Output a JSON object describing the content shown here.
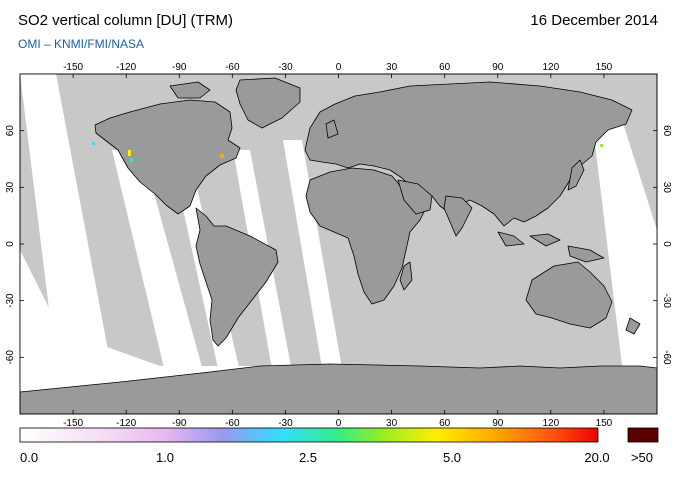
{
  "header": {
    "title": "SO2 vertical column [DU] (TRM)",
    "date": "16 December 2014",
    "credit": "OMI  –  KNMI/FMI/NASA"
  },
  "map": {
    "lon_ticks": [
      "-150",
      "-120",
      "-90",
      "-60",
      "-30",
      "0",
      "30",
      "60",
      "90",
      "120",
      "150"
    ],
    "lat_ticks": [
      "60",
      "30",
      "0",
      "-30",
      "-60"
    ],
    "colors": {
      "ocean": "#c8c8c8",
      "land": "#9a9a9a",
      "swath": "#ffffff",
      "coast": "#000000"
    }
  },
  "colorbar": {
    "labels": [
      "0.0",
      "1.0",
      "2.5",
      "5.0",
      "20.0",
      ">50"
    ],
    "over_color": "#5a0000"
  }
}
